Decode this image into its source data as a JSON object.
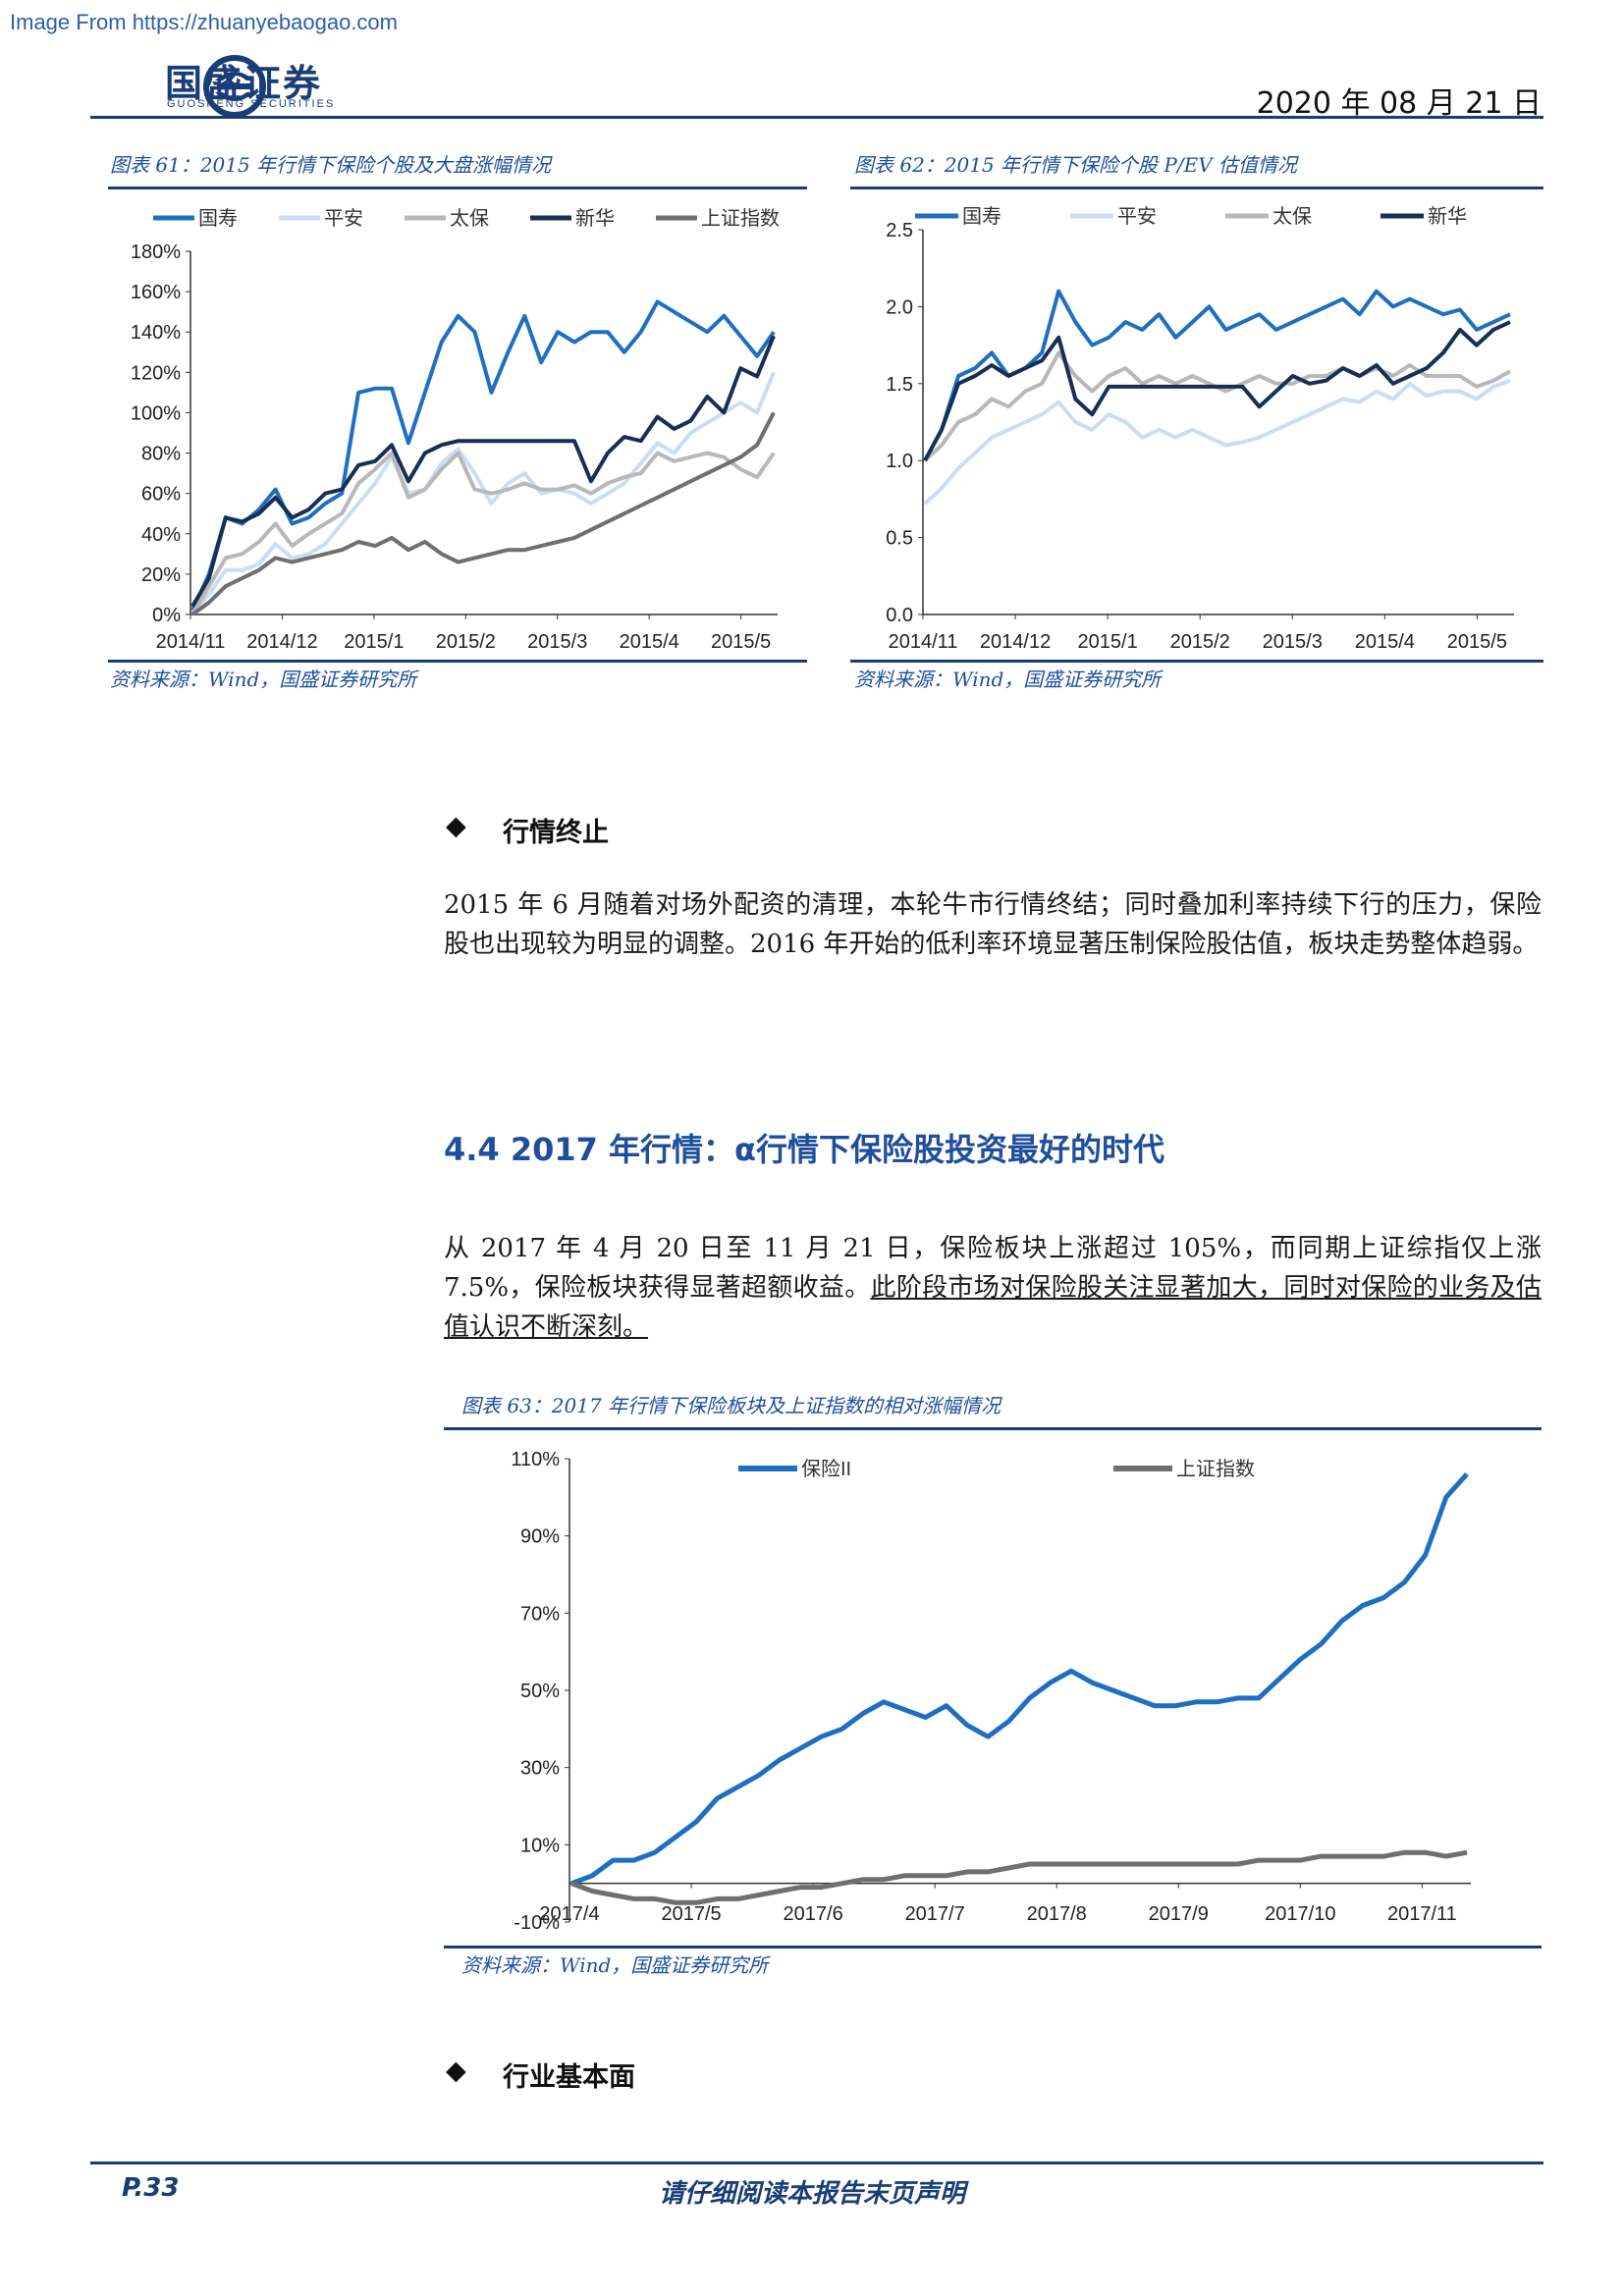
{
  "watermark": "Image From https://zhuanyebaogao.com",
  "header": {
    "logo_cn": "国盛证券",
    "logo_en": "GUOSHENG SECURITIES",
    "date": "2020 年 08 月 21 日"
  },
  "figure61": {
    "title": "图表 61：2015 年行情下保险个股及大盘涨幅情况",
    "source": "资料来源：Wind，国盛证券研究所"
  },
  "figure62": {
    "title": "图表 62：2015 年行情下保险个股 P/EV 估值情况",
    "source": "资料来源：Wind，国盛证券研究所"
  },
  "section_end": {
    "bullet": "行情终止",
    "paragraph": "2015 年 6 月随着对场外配资的清理，本轮牛市行情终结；同时叠加利率持续下行的压力，保险股也出现较为明显的调整。2016 年开始的低利率环境显著压制保险股估值，板块走势整体趋弱。"
  },
  "section_44": {
    "heading": "4.4 2017 年行情：α行情下保险股投资最好的时代",
    "para_normal": "从 2017 年 4 月 20 日至 11 月 21 日，保险板块上涨超过 105%，而同期上证综指仅上涨 7.5%，保险板块获得显著超额收益。",
    "para_underlined": "此阶段市场对保险股关注显著加大，同时对保险的业务及估值认识不断深刻。"
  },
  "figure63": {
    "title": "图表 63：2017 年行情下保险板块及上证指数的相对涨幅情况",
    "source": "资料来源：Wind，国盛证券研究所"
  },
  "section_fund": {
    "bullet": "行业基本面"
  },
  "footer": {
    "page": "P.33",
    "disclaimer": "请仔细阅读本报告末页声明"
  },
  "colors": {
    "guoshou": "#1f6fc0",
    "pingan": "#c9def2",
    "taibao": "#b8b8b8",
    "xinhua": "#172f55",
    "shanghai": "#6f6f6f",
    "brand": "#1a3d78"
  },
  "chart_data": [
    {
      "type": "line",
      "x_ticks": [
        "2014/11",
        "2014/12",
        "2015/1",
        "2015/2",
        "2015/3",
        "2015/4",
        "2015/5"
      ],
      "y_ticks": [
        "0%",
        "20%",
        "40%",
        "60%",
        "80%",
        "100%",
        "120%",
        "140%",
        "160%",
        "180%"
      ],
      "ylim": [
        0,
        180
      ],
      "legend": "top",
      "series": [
        {
          "name": "国寿",
          "values": [
            2,
            20,
            48,
            45,
            52,
            62,
            45,
            48,
            55,
            60,
            110,
            112,
            112,
            85,
            110,
            135,
            148,
            140,
            110,
            130,
            148,
            125,
            140,
            135,
            140,
            140,
            130,
            140,
            155,
            150,
            145,
            140,
            148,
            138,
            128,
            140
          ]
        },
        {
          "name": "平安",
          "values": [
            0,
            10,
            22,
            22,
            25,
            35,
            28,
            30,
            35,
            45,
            55,
            65,
            78,
            60,
            62,
            75,
            82,
            70,
            55,
            65,
            70,
            60,
            62,
            60,
            55,
            60,
            65,
            75,
            85,
            80,
            90,
            95,
            100,
            105,
            100,
            120
          ]
        },
        {
          "name": "太保",
          "values": [
            0,
            14,
            28,
            30,
            36,
            45,
            34,
            40,
            45,
            50,
            65,
            72,
            80,
            58,
            62,
            72,
            80,
            62,
            60,
            62,
            65,
            62,
            62,
            64,
            60,
            65,
            68,
            70,
            80,
            76,
            78,
            80,
            78,
            72,
            68,
            80
          ]
        },
        {
          "name": "新华",
          "values": [
            4,
            18,
            48,
            46,
            50,
            58,
            48,
            52,
            60,
            62,
            74,
            76,
            84,
            66,
            80,
            84,
            86,
            86,
            86,
            86,
            86,
            86,
            86,
            86,
            66,
            80,
            88,
            86,
            98,
            92,
            96,
            108,
            100,
            122,
            118,
            138
          ]
        },
        {
          "name": "上证指数",
          "values": [
            0,
            6,
            14,
            18,
            22,
            28,
            26,
            28,
            30,
            32,
            36,
            34,
            38,
            32,
            36,
            30,
            26,
            28,
            30,
            32,
            32,
            34,
            36,
            38,
            42,
            46,
            50,
            54,
            58,
            62,
            66,
            70,
            74,
            78,
            84,
            100
          ]
        }
      ]
    },
    {
      "type": "line",
      "x_ticks": [
        "2014/11",
        "2014/12",
        "2015/1",
        "2015/2",
        "2015/3",
        "2015/4",
        "2015/5"
      ],
      "y_ticks": [
        "0.0",
        "0.5",
        "1.0",
        "1.5",
        "2.0",
        "2.5"
      ],
      "ylim": [
        0,
        2.5
      ],
      "legend": "top",
      "series": [
        {
          "name": "国寿",
          "values": [
            1.0,
            1.2,
            1.55,
            1.6,
            1.7,
            1.55,
            1.6,
            1.7,
            2.1,
            1.9,
            1.75,
            1.8,
            1.9,
            1.85,
            1.95,
            1.8,
            1.9,
            2.0,
            1.85,
            1.9,
            1.95,
            1.85,
            1.9,
            1.95,
            2.0,
            2.05,
            1.95,
            2.1,
            2.0,
            2.05,
            2.0,
            1.95,
            1.98,
            1.85,
            1.9,
            1.95
          ]
        },
        {
          "name": "平安",
          "values": [
            0.72,
            0.82,
            0.95,
            1.05,
            1.15,
            1.2,
            1.25,
            1.3,
            1.38,
            1.25,
            1.2,
            1.3,
            1.25,
            1.15,
            1.2,
            1.15,
            1.2,
            1.15,
            1.1,
            1.12,
            1.15,
            1.2,
            1.25,
            1.3,
            1.35,
            1.4,
            1.38,
            1.45,
            1.4,
            1.5,
            1.42,
            1.45,
            1.45,
            1.4,
            1.48,
            1.52
          ]
        },
        {
          "name": "太保",
          "values": [
            1.0,
            1.1,
            1.25,
            1.3,
            1.4,
            1.35,
            1.45,
            1.5,
            1.7,
            1.55,
            1.45,
            1.55,
            1.6,
            1.5,
            1.55,
            1.5,
            1.55,
            1.5,
            1.45,
            1.5,
            1.55,
            1.5,
            1.5,
            1.55,
            1.55,
            1.6,
            1.55,
            1.6,
            1.55,
            1.62,
            1.55,
            1.55,
            1.55,
            1.48,
            1.52,
            1.58
          ]
        },
        {
          "name": "新华",
          "values": [
            1.0,
            1.2,
            1.5,
            1.55,
            1.62,
            1.55,
            1.6,
            1.65,
            1.8,
            1.4,
            1.3,
            1.48,
            1.48,
            1.48,
            1.48,
            1.48,
            1.48,
            1.48,
            1.48,
            1.48,
            1.35,
            1.45,
            1.55,
            1.5,
            1.52,
            1.6,
            1.55,
            1.62,
            1.5,
            1.55,
            1.6,
            1.7,
            1.85,
            1.75,
            1.85,
            1.9
          ]
        }
      ]
    },
    {
      "type": "line",
      "x_ticks": [
        "2017/4",
        "2017/5",
        "2017/6",
        "2017/7",
        "2017/8",
        "2017/9",
        "2017/10",
        "2017/11"
      ],
      "y_ticks": [
        "-10%",
        "10%",
        "30%",
        "50%",
        "70%",
        "90%",
        "110%"
      ],
      "ylim": [
        -10,
        110
      ],
      "legend": "top",
      "series": [
        {
          "name": "保险II",
          "values": [
            0,
            2,
            6,
            6,
            8,
            12,
            16,
            22,
            25,
            28,
            32,
            35,
            38,
            40,
            44,
            47,
            45,
            43,
            46,
            41,
            38,
            42,
            48,
            52,
            55,
            52,
            50,
            48,
            46,
            46,
            47,
            47,
            48,
            48,
            53,
            58,
            62,
            68,
            72,
            74,
            78,
            85,
            100,
            106
          ]
        },
        {
          "name": "上证指数",
          "values": [
            0,
            -2,
            -3,
            -4,
            -4,
            -5,
            -5,
            -4,
            -4,
            -3,
            -2,
            -1,
            -1,
            0,
            1,
            1,
            2,
            2,
            2,
            3,
            3,
            4,
            5,
            5,
            5,
            5,
            5,
            5,
            5,
            5,
            5,
            5,
            5,
            6,
            6,
            6,
            7,
            7,
            7,
            7,
            8,
            8,
            7,
            8
          ]
        }
      ]
    }
  ]
}
